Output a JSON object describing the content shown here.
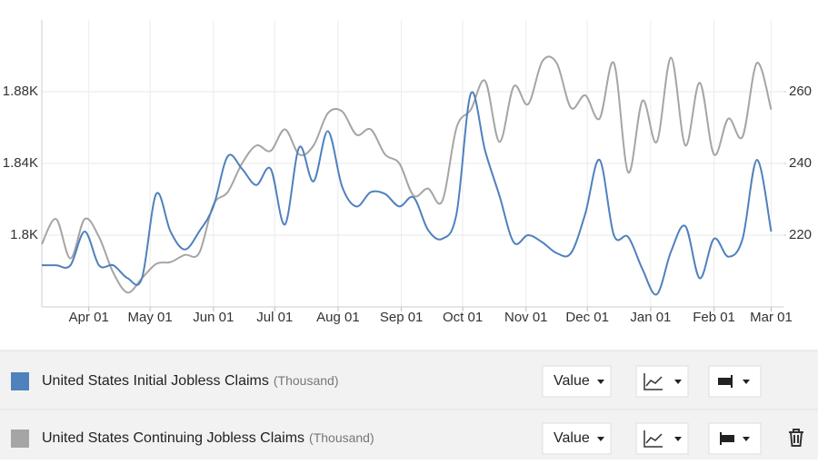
{
  "chart_data": {
    "type": "line",
    "x": [
      8,
      15,
      22,
      29,
      36,
      43,
      50,
      57,
      64,
      71,
      78,
      85,
      92,
      99,
      106,
      113,
      120,
      127,
      134,
      141,
      148,
      155,
      162,
      169,
      176,
      183,
      190,
      197,
      204,
      211,
      218,
      225,
      232,
      239,
      246,
      253,
      260,
      267,
      274,
      281,
      288,
      295,
      302,
      309,
      316,
      323,
      330,
      337,
      344,
      351,
      358,
      365
    ],
    "xlim": [
      8,
      371
    ],
    "xticks": [
      {
        "value": 31,
        "label": "Apr 01"
      },
      {
        "value": 61,
        "label": "May 01"
      },
      {
        "value": 92,
        "label": "Jun 01"
      },
      {
        "value": 122,
        "label": "Jul 01"
      },
      {
        "value": 153,
        "label": "Aug 01"
      },
      {
        "value": 184,
        "label": "Sep 01"
      },
      {
        "value": 214,
        "label": "Oct 01"
      },
      {
        "value": 245,
        "label": "Nov 01"
      },
      {
        "value": 275,
        "label": "Dec 01"
      },
      {
        "value": 306,
        "label": "Jan 01"
      },
      {
        "value": 337,
        "label": "Feb 01"
      },
      {
        "value": 365,
        "label": "Mar 01"
      }
    ],
    "ylim": [
      1760,
      1920
    ],
    "yticks": [
      {
        "value": 1800,
        "label": "1.8K"
      },
      {
        "value": 1840,
        "label": "1.84K"
      },
      {
        "value": 1880,
        "label": "1.88K"
      }
    ],
    "y2lim": [
      200,
      280
    ],
    "y2ticks": [
      220,
      240,
      260
    ],
    "grid": true,
    "series": [
      {
        "name": "United States Initial Jobless Claims",
        "unit": "(Thousand)",
        "color": "#4f81bd",
        "axis": "y2",
        "values": [
          211.6,
          211.6,
          211.6,
          221,
          211.6,
          211.6,
          208,
          208,
          231.5,
          221,
          216,
          221,
          228,
          242,
          238.5,
          234,
          238.5,
          223,
          244.5,
          235,
          249,
          233.5,
          228,
          232,
          231.5,
          228,
          230.5,
          221.5,
          219,
          226,
          259.5,
          243.5,
          231,
          218,
          220,
          218,
          215,
          215,
          226,
          241,
          220,
          219.5,
          210.5,
          203.5,
          215.5,
          222.5,
          208,
          219,
          214,
          219,
          241,
          221
        ]
      },
      {
        "name": "United States Continuing Jobless Claims",
        "unit": "(Thousand)",
        "color": "#a5a5a5",
        "axis": "y",
        "values": [
          1795,
          1809,
          1787,
          1809,
          1799,
          1779,
          1768,
          1776,
          1784,
          1785,
          1789,
          1790,
          1817,
          1824,
          1840,
          1850,
          1847,
          1859,
          1845,
          1850,
          1868,
          1869,
          1856,
          1859,
          1845,
          1840,
          1822,
          1826,
          1819,
          1860,
          1870,
          1886,
          1852,
          1883,
          1873,
          1897,
          1896,
          1871,
          1878,
          1865,
          1896,
          1835,
          1875,
          1852,
          1899,
          1850,
          1885,
          1845,
          1865,
          1855,
          1896,
          1870
        ]
      }
    ]
  },
  "controls": [
    {
      "value": "Value"
    },
    {
      "value": "Value"
    }
  ]
}
